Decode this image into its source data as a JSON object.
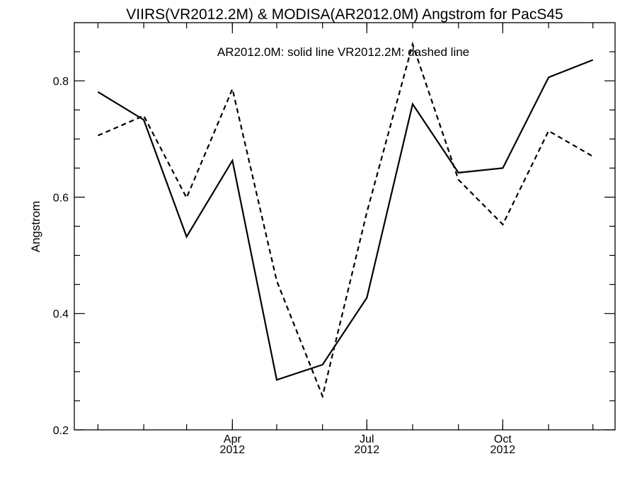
{
  "chart_data": {
    "type": "line",
    "title": "VIIRS(VR2012.2M) & MODISA(AR2012.0M)  Angstrom for PacS45",
    "annotation": "AR2012.0M: solid line   VR2012.2M: dashed line",
    "xlabel": "",
    "ylabel": "Angstrom",
    "x": [
      "2012-01-01",
      "2012-02-01",
      "2012-03-01",
      "2012-04-01",
      "2012-05-01",
      "2012-06-01",
      "2012-07-01",
      "2012-08-01",
      "2012-09-01",
      "2012-10-01",
      "2012-11-01",
      "2012-12-01"
    ],
    "xlim": [
      "2011-12-16",
      "2012-12-16"
    ],
    "x_ticks": [
      {
        "month": "Apr",
        "year": "2012",
        "date": "2012-04-01"
      },
      {
        "month": "Jul",
        "year": "2012",
        "date": "2012-07-01"
      },
      {
        "month": "Oct",
        "year": "2012",
        "date": "2012-10-01"
      }
    ],
    "ylim": [
      0.2,
      0.9
    ],
    "y_ticks": [
      0.2,
      0.4,
      0.6,
      0.8
    ],
    "y_tick_labels": [
      "0.2",
      "0.4",
      "0.6",
      "0.8"
    ],
    "series": [
      {
        "name": "AR2012.0M",
        "style": "solid",
        "color": "#000000",
        "values": [
          0.781,
          0.733,
          0.532,
          0.663,
          0.286,
          0.312,
          0.427,
          0.76,
          0.642,
          0.65,
          0.806,
          0.836
        ]
      },
      {
        "name": "VR2012.2M",
        "style": "dashed",
        "color": "#000000",
        "values": [
          0.706,
          0.74,
          0.599,
          0.786,
          0.456,
          0.258,
          0.574,
          0.863,
          0.63,
          0.553,
          0.714,
          0.67
        ]
      }
    ],
    "grid": false,
    "legend": "none"
  }
}
